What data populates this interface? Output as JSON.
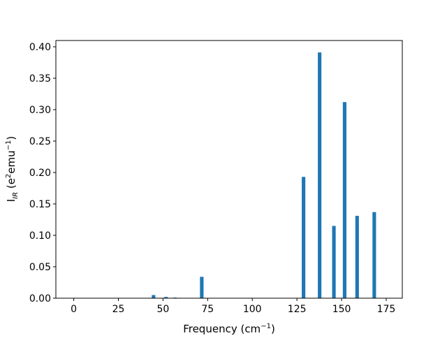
{
  "chart_data": {
    "type": "bar",
    "title": "",
    "xlabel": "Frequency (cm",
    "xlabel_sup": "−1",
    "xlabel_end": ")",
    "ylabel": {
      "main": "I",
      "sub": "IR",
      "mid": " (e",
      "sup1": "2",
      "mid2": "emu",
      "sup2": "−1",
      "end": ")"
    },
    "xlim": [
      -10,
      184
    ],
    "ylim": [
      0,
      0.41
    ],
    "xticks": [
      0,
      25,
      50,
      75,
      100,
      125,
      150,
      175
    ],
    "yticks": [
      0.0,
      0.05,
      0.1,
      0.15,
      0.2,
      0.25,
      0.3,
      0.35,
      0.4
    ],
    "ytick_labels": [
      "0.00",
      "0.05",
      "0.10",
      "0.15",
      "0.20",
      "0.25",
      "0.30",
      "0.35",
      "0.40"
    ],
    "bar_width": 2,
    "bar_color": "#1f77b4",
    "grid": false,
    "x": [
      44.7,
      51.7,
      56.7,
      71.7,
      128.7,
      137.7,
      145.7,
      151.7,
      158.7,
      168.3
    ],
    "values": [
      0.005,
      0.002,
      0.001,
      0.034,
      0.193,
      0.391,
      0.115,
      0.312,
      0.131,
      0.137
    ]
  }
}
